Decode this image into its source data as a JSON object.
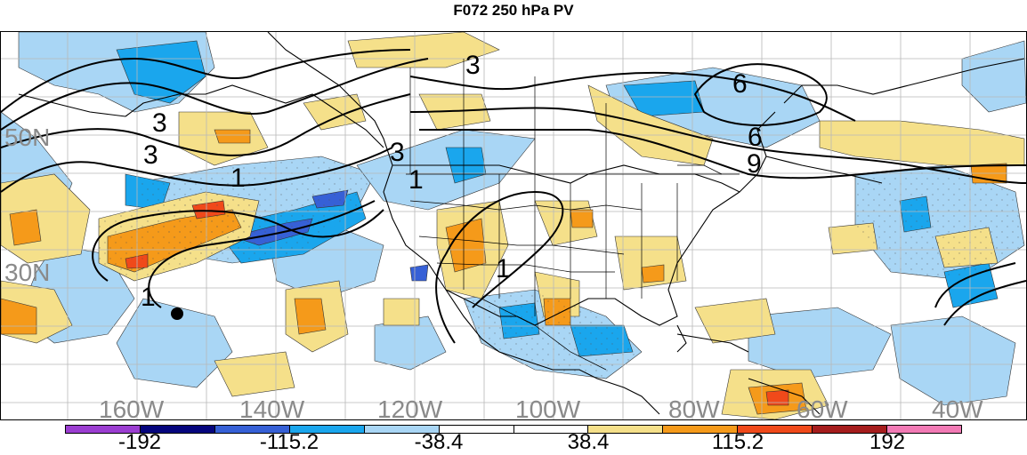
{
  "title": "F072 250 hPa PV",
  "longitude_labels": [
    "160W",
    "140W",
    "120W",
    "100W",
    "80W",
    "60W",
    "40W"
  ],
  "latitude_labels": [
    "50N",
    "30N"
  ],
  "contour_labels": [
    "3",
    "3",
    "1",
    "1",
    "1",
    "1",
    "3",
    "3",
    "6",
    "6",
    "9"
  ],
  "colorbar": {
    "colors": [
      "#9b3ed1",
      "#05057d",
      "#3660d6",
      "#1aa6ed",
      "#a9d6f5",
      "#ffffff",
      "#ffffff",
      "#f5e08a",
      "#f59a1a",
      "#f0491a",
      "#a51c1c",
      "#f27ab5"
    ],
    "labels": [
      "-192",
      "-115.2",
      "-38.4",
      "38.4",
      "115.2",
      "192"
    ]
  },
  "colors": {
    "light_blue": "#a9d6f5",
    "blue": "#1aa6ed",
    "dark_blue": "#3660d6",
    "navy": "#05057d",
    "light_yellow": "#f5e08a",
    "orange": "#f59a1a",
    "red_orange": "#f0491a"
  }
}
